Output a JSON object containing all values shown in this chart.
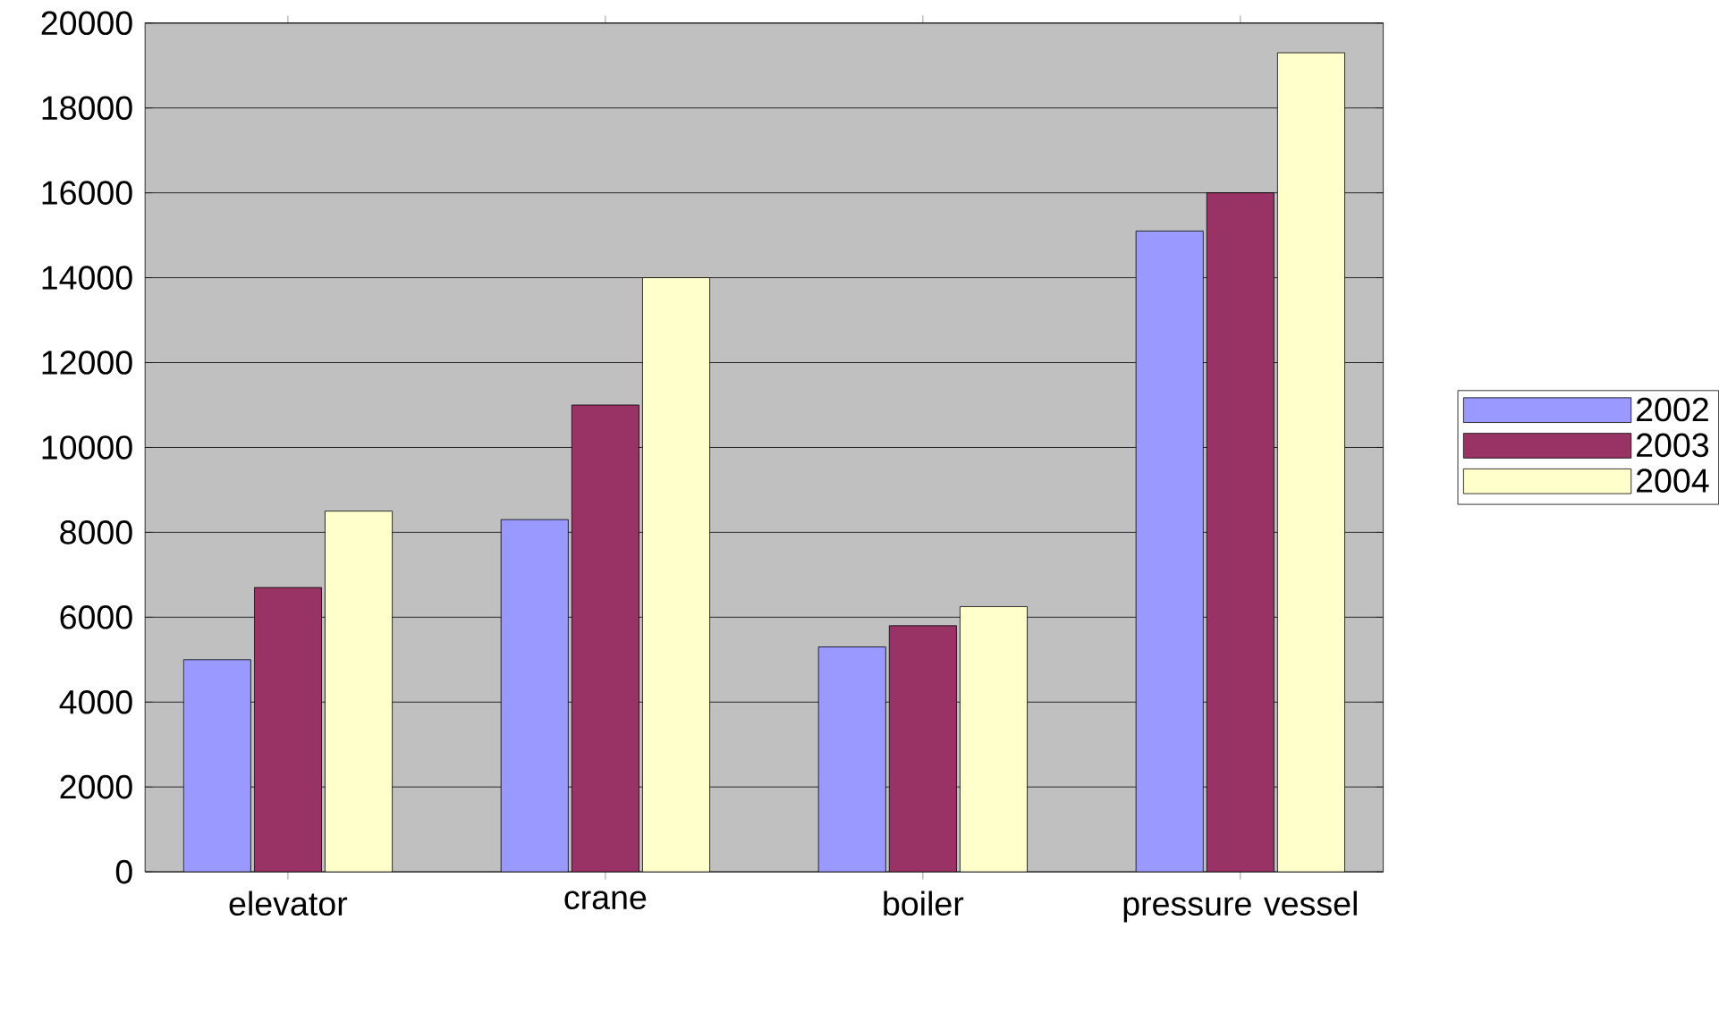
{
  "chart_data": {
    "type": "bar",
    "categories": [
      "elevator",
      "crane",
      "boiler",
      "pressure vessel"
    ],
    "series": [
      {
        "name": "2002",
        "color": "#9999ff",
        "values": [
          5000,
          8300,
          5300,
          15100
        ]
      },
      {
        "name": "2003",
        "color": "#993366",
        "values": [
          6700,
          11000,
          5800,
          16000
        ]
      },
      {
        "name": "2004",
        "color": "#ffffcc",
        "values": [
          8500,
          14000,
          6250,
          19300
        ]
      }
    ],
    "ylim": [
      0,
      20000
    ],
    "yticks": [
      0,
      2000,
      4000,
      6000,
      8000,
      10000,
      12000,
      14000,
      16000,
      18000,
      20000
    ],
    "grid": "y",
    "legend": "right"
  }
}
